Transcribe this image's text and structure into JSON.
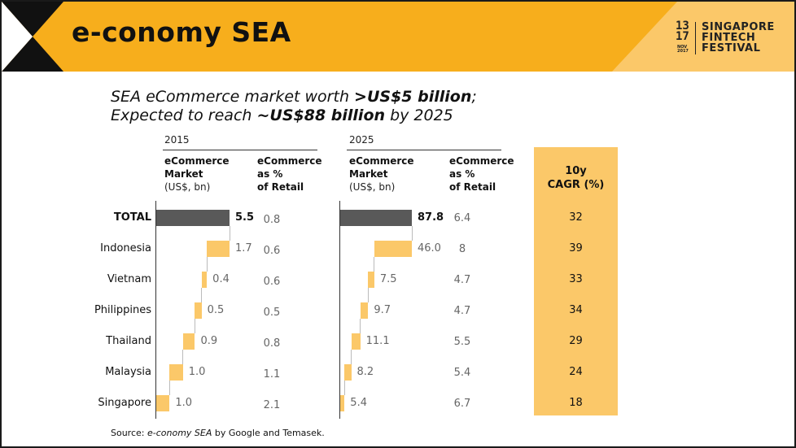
{
  "header": {
    "title": "e-conomy SEA",
    "logo": {
      "line1": "13",
      "line2": "17",
      "month": "NOV",
      "year": "2017",
      "name_lines": [
        "SINGAPORE",
        "FINTECH",
        "FESTIVAL"
      ]
    }
  },
  "headline": {
    "line1_pre": "SEA eCommerce market worth ",
    "line1_bold": ">US$5 billion",
    "line1_post": ";",
    "line2_pre": "Expected to reach ",
    "line2_bold": "~US$88 billion",
    "line2_post": " by 2025"
  },
  "columns": {
    "year_2015": "2015",
    "year_2025": "2025",
    "market_label": [
      "eCommerce",
      "Market"
    ],
    "market_unit": "(US$, bn)",
    "pct_label": [
      "eCommerce",
      "as %",
      "of Retail"
    ],
    "cagr_label": [
      "10y",
      "CAGR (%)"
    ]
  },
  "chart_data": {
    "type": "bar",
    "categories": [
      "TOTAL",
      "Indonesia",
      "Vietnam",
      "Philippines",
      "Thailand",
      "Malaysia",
      "Singapore"
    ],
    "market_2015": [
      5.5,
      1.7,
      0.4,
      0.5,
      0.9,
      1.0,
      1.0
    ],
    "market_2015_labels": [
      "5.5",
      "1.7",
      "0.4",
      "0.5",
      "0.9",
      "1.0",
      "1.0"
    ],
    "pct_retail_2015": [
      "0.8",
      "0.6",
      "0.6",
      "0.5",
      "0.8",
      "1.1",
      "2.1"
    ],
    "market_2025": [
      87.8,
      46.0,
      7.5,
      9.7,
      11.1,
      8.2,
      5.4
    ],
    "market_2025_labels": [
      "87.8",
      "46.0",
      "7.5",
      "9.7",
      "11.1",
      "8.2",
      "5.4"
    ],
    "pct_retail_2025": [
      "6.4",
      "8",
      "4.7",
      "4.7",
      "5.5",
      "5.4",
      "6.7"
    ],
    "cagr_10y": [
      "32",
      "39",
      "33",
      "34",
      "29",
      "24",
      "18"
    ]
  },
  "colors": {
    "total_bar": "#595959",
    "country_bar": "#fbc869",
    "header_yellow": "#f7ae1c",
    "header_light": "#fbc869"
  },
  "source": {
    "prefix": "Source: ",
    "italic": "e-conomy SEA",
    "suffix": " by Google and Temasek."
  }
}
